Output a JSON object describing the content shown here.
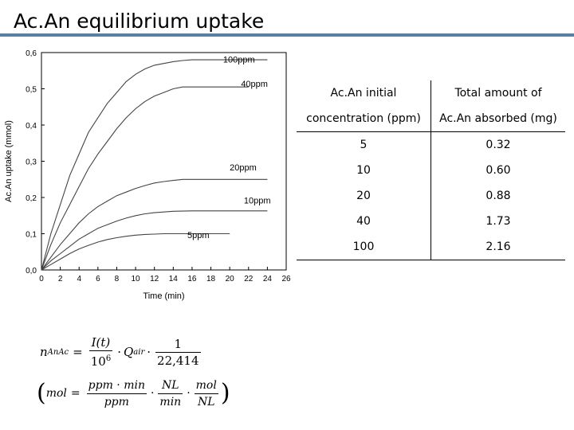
{
  "slide": {
    "title": "Ac.An equilibrium uptake"
  },
  "chart_data": {
    "type": "line",
    "xlabel": "Time (min)",
    "ylabel": "Ac.An uptake (mmol)",
    "xlim": [
      0,
      26
    ],
    "ylim": [
      0.0,
      0.6
    ],
    "x_ticks": [
      "0",
      "2",
      "4",
      "6",
      "8",
      "10",
      "12",
      "14",
      "16",
      "18",
      "20",
      "22",
      "24",
      "26"
    ],
    "y_ticks": [
      "0,0",
      "0,1",
      "0,2",
      "0,3",
      "0,4",
      "0,5",
      "0,6"
    ],
    "grid": false,
    "series": [
      {
        "name": "100ppm",
        "points": [
          [
            0,
            0
          ],
          [
            1,
            0.1
          ],
          [
            2,
            0.18
          ],
          [
            3,
            0.26
          ],
          [
            4,
            0.32
          ],
          [
            5,
            0.38
          ],
          [
            6,
            0.42
          ],
          [
            7,
            0.46
          ],
          [
            8,
            0.49
          ],
          [
            9,
            0.52
          ],
          [
            10,
            0.54
          ],
          [
            11,
            0.555
          ],
          [
            12,
            0.565
          ],
          [
            13,
            0.57
          ],
          [
            14,
            0.575
          ],
          [
            15,
            0.578
          ],
          [
            16,
            0.58
          ],
          [
            17,
            0.58
          ],
          [
            18,
            0.58
          ],
          [
            20,
            0.58
          ],
          [
            22,
            0.58
          ],
          [
            24,
            0.58
          ]
        ]
      },
      {
        "name": "40ppm",
        "points": [
          [
            0,
            0
          ],
          [
            1,
            0.07
          ],
          [
            2,
            0.13
          ],
          [
            3,
            0.18
          ],
          [
            4,
            0.23
          ],
          [
            5,
            0.28
          ],
          [
            6,
            0.32
          ],
          [
            7,
            0.355
          ],
          [
            8,
            0.39
          ],
          [
            9,
            0.42
          ],
          [
            10,
            0.445
          ],
          [
            11,
            0.465
          ],
          [
            12,
            0.48
          ],
          [
            13,
            0.49
          ],
          [
            14,
            0.5
          ],
          [
            15,
            0.505
          ],
          [
            16,
            0.505
          ],
          [
            18,
            0.505
          ],
          [
            20,
            0.505
          ],
          [
            22,
            0.505
          ]
        ]
      },
      {
        "name": "20ppm",
        "points": [
          [
            0,
            0
          ],
          [
            1,
            0.035
          ],
          [
            2,
            0.07
          ],
          [
            3,
            0.1
          ],
          [
            4,
            0.13
          ],
          [
            5,
            0.155
          ],
          [
            6,
            0.175
          ],
          [
            7,
            0.19
          ],
          [
            8,
            0.205
          ],
          [
            9,
            0.215
          ],
          [
            10,
            0.225
          ],
          [
            11,
            0.233
          ],
          [
            12,
            0.24
          ],
          [
            13,
            0.244
          ],
          [
            14,
            0.247
          ],
          [
            15,
            0.25
          ],
          [
            16,
            0.25
          ],
          [
            18,
            0.25
          ],
          [
            20,
            0.25
          ],
          [
            22,
            0.25
          ],
          [
            24,
            0.25
          ]
        ]
      },
      {
        "name": "10ppm",
        "points": [
          [
            0,
            0
          ],
          [
            1,
            0.025
          ],
          [
            2,
            0.045
          ],
          [
            3,
            0.065
          ],
          [
            4,
            0.085
          ],
          [
            5,
            0.1
          ],
          [
            6,
            0.115
          ],
          [
            7,
            0.125
          ],
          [
            8,
            0.135
          ],
          [
            9,
            0.143
          ],
          [
            10,
            0.15
          ],
          [
            11,
            0.155
          ],
          [
            12,
            0.158
          ],
          [
            13,
            0.16
          ],
          [
            14,
            0.162
          ],
          [
            16,
            0.163
          ],
          [
            18,
            0.163
          ],
          [
            20,
            0.163
          ],
          [
            22,
            0.163
          ],
          [
            24,
            0.163
          ]
        ]
      },
      {
        "name": "5ppm",
        "points": [
          [
            0,
            0
          ],
          [
            1,
            0.015
          ],
          [
            2,
            0.03
          ],
          [
            3,
            0.045
          ],
          [
            4,
            0.058
          ],
          [
            5,
            0.068
          ],
          [
            6,
            0.077
          ],
          [
            7,
            0.084
          ],
          [
            8,
            0.089
          ],
          [
            9,
            0.093
          ],
          [
            10,
            0.096
          ],
          [
            11,
            0.098
          ],
          [
            12,
            0.099
          ],
          [
            13,
            0.1
          ],
          [
            14,
            0.1
          ],
          [
            16,
            0.1
          ],
          [
            18,
            0.1
          ],
          [
            20,
            0.1
          ]
        ]
      }
    ]
  },
  "table": {
    "headers": [
      [
        "Ac.An initial",
        "Total amount of"
      ],
      [
        "concentration (ppm)",
        "Ac.An absorbed (mg)"
      ]
    ],
    "rows": [
      [
        "5",
        "0.32"
      ],
      [
        "10",
        "0.60"
      ],
      [
        "20",
        "0.88"
      ],
      [
        "40",
        "1.73"
      ],
      [
        "100",
        "2.16"
      ]
    ]
  },
  "formula": {
    "lhs": "n",
    "lhs_sub": "AnAc",
    "eq": "=",
    "num1": "I(t)",
    "den1": "10",
    "den1_sup": "6",
    "dot": "·",
    "q": "Q",
    "q_sub": "air",
    "num2": "1",
    "den2": "22,414",
    "units_lhs": "mol",
    "units_num1": "ppm · min",
    "units_den1": "ppm",
    "units_num2": "NL",
    "units_den2": "min",
    "units_num3": "mol",
    "units_den3": "NL"
  }
}
